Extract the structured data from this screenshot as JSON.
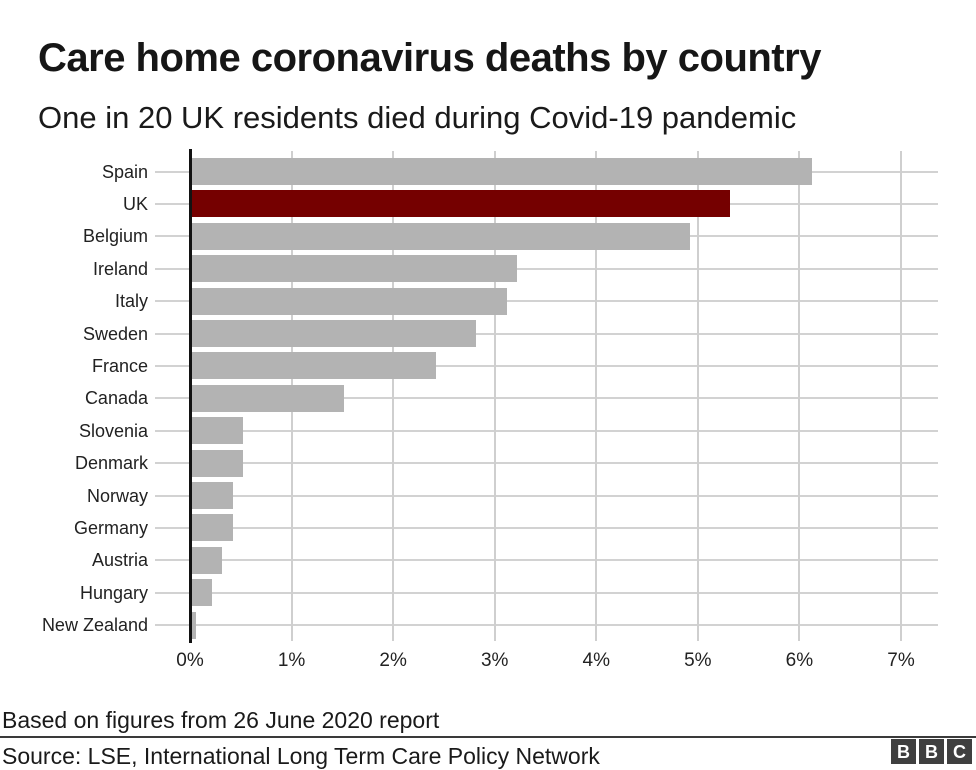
{
  "header": {
    "title": "Care home coronavirus deaths by country",
    "subtitle": "One in 20 UK residents died during Covid-19 pandemic"
  },
  "chart_data": {
    "type": "bar",
    "orientation": "horizontal",
    "title": "Care home coronavirus deaths by country",
    "subtitle": "One in 20 UK residents died during Covid-19 pandemic",
    "categories": [
      "Spain",
      "UK",
      "Belgium",
      "Ireland",
      "Italy",
      "Sweden",
      "France",
      "Canada",
      "Slovenia",
      "Denmark",
      "Norway",
      "Germany",
      "Austria",
      "Hungary",
      "New Zealand"
    ],
    "values": [
      6.1,
      5.3,
      4.9,
      3.2,
      3.1,
      2.8,
      2.4,
      1.5,
      0.5,
      0.5,
      0.4,
      0.4,
      0.3,
      0.2,
      0.04
    ],
    "unit": "%",
    "xlabel": "",
    "ylabel": "",
    "xlim": [
      0,
      7.36
    ],
    "x_ticks": [
      "0%",
      "1%",
      "2%",
      "3%",
      "4%",
      "5%",
      "6%",
      "7%"
    ],
    "grid": true,
    "legend": "none",
    "highlight_category": "UK",
    "colors": {
      "bar": "#b3b3b3",
      "highlight": "#750000",
      "axis": "#121212",
      "gridline": "#cfcfcf"
    }
  },
  "footer": {
    "note": "Based on figures from 26 June 2020 report",
    "source": "Source: LSE, International Long Term Care Policy Network",
    "logo_letters": [
      "B",
      "B",
      "C"
    ]
  }
}
